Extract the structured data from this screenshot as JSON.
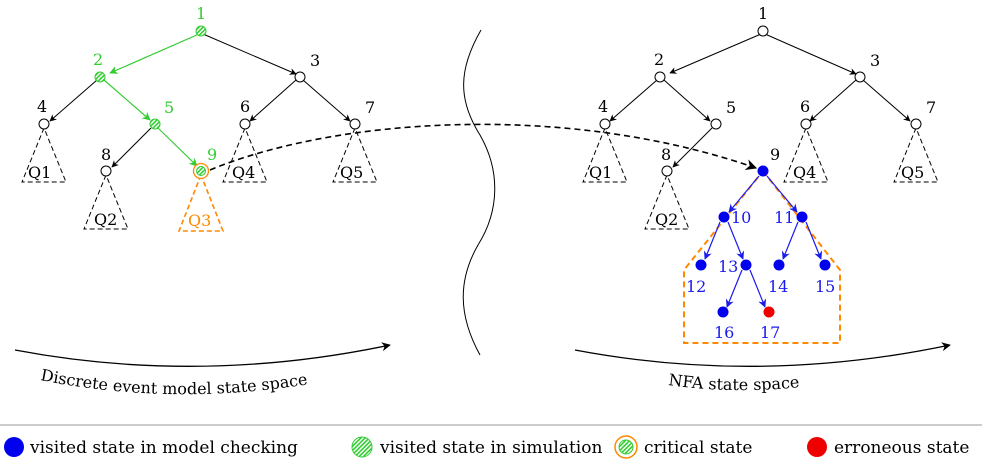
{
  "colors": {
    "simulation": "#33cc33",
    "model_checking": "#0000ee",
    "critical": "#ff8800",
    "erroneous": "#ee0000",
    "subtree": "#ff8800"
  },
  "left_tree": {
    "caption": "Discrete event model state space",
    "nodes": [
      "1",
      "2",
      "3",
      "4",
      "5",
      "6",
      "7",
      "8",
      "9"
    ],
    "subtrees": [
      "Q1",
      "Q2",
      "Q3",
      "Q4",
      "Q5"
    ]
  },
  "right_tree": {
    "caption": "NFA state space",
    "nodes": [
      "1",
      "2",
      "3",
      "4",
      "5",
      "6",
      "7",
      "8",
      "9",
      "10",
      "11",
      "12",
      "13",
      "14",
      "15",
      "16",
      "17"
    ],
    "subtrees": [
      "Q1",
      "Q2",
      "Q4",
      "Q5"
    ]
  },
  "legend": {
    "visited_model_checking": "visited state in model checking",
    "visited_simulation": "visited state in simulation",
    "critical": "critical state",
    "erroneous": "erroneous state"
  }
}
